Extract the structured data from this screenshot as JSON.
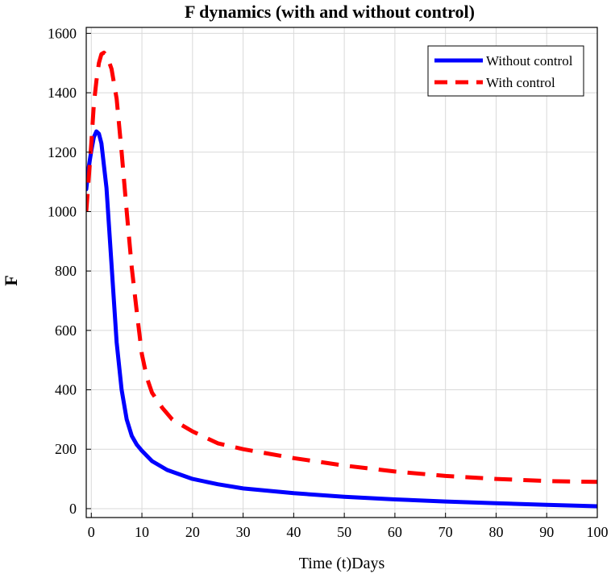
{
  "chart_data": {
    "type": "line",
    "title": "F dynamics (with and without control)",
    "xlabel": "Time (t)Days",
    "ylabel": "F",
    "xlim": [
      -1,
      100
    ],
    "ylim": [
      -30,
      1620
    ],
    "x_ticks": [
      0,
      10,
      20,
      30,
      40,
      50,
      60,
      70,
      80,
      90,
      100
    ],
    "y_ticks": [
      0,
      200,
      400,
      600,
      800,
      1000,
      1200,
      1400,
      1600
    ],
    "grid": true,
    "legend_position": "top-right",
    "series": [
      {
        "name": "Without control",
        "color": "#0000ff",
        "style": "solid",
        "x": [
          -1,
          -0.5,
          0,
          0.5,
          1,
          1.5,
          2,
          3,
          4,
          5,
          6,
          7,
          8,
          9,
          10,
          12,
          15,
          20,
          25,
          30,
          40,
          50,
          60,
          70,
          80,
          90,
          100
        ],
        "y": [
          1075,
          1150,
          1205,
          1250,
          1270,
          1262,
          1230,
          1080,
          820,
          560,
          400,
          300,
          245,
          215,
          195,
          160,
          130,
          100,
          82,
          68,
          52,
          40,
          31,
          24,
          18,
          13,
          8
        ]
      },
      {
        "name": "With control",
        "color": "#ff0000",
        "style": "dashed",
        "x": [
          -1,
          0,
          0.5,
          1,
          1.5,
          2,
          2.5,
          3,
          3.5,
          4,
          5,
          6,
          7,
          8,
          9,
          10,
          11,
          12,
          14,
          16,
          20,
          25,
          30,
          40,
          50,
          60,
          70,
          80,
          90,
          100
        ],
        "y": [
          1000,
          1230,
          1360,
          1440,
          1500,
          1530,
          1535,
          1525,
          1505,
          1480,
          1380,
          1200,
          1000,
          810,
          660,
          520,
          440,
          390,
          340,
          300,
          260,
          220,
          200,
          170,
          145,
          125,
          110,
          100,
          93,
          90
        ]
      }
    ]
  }
}
